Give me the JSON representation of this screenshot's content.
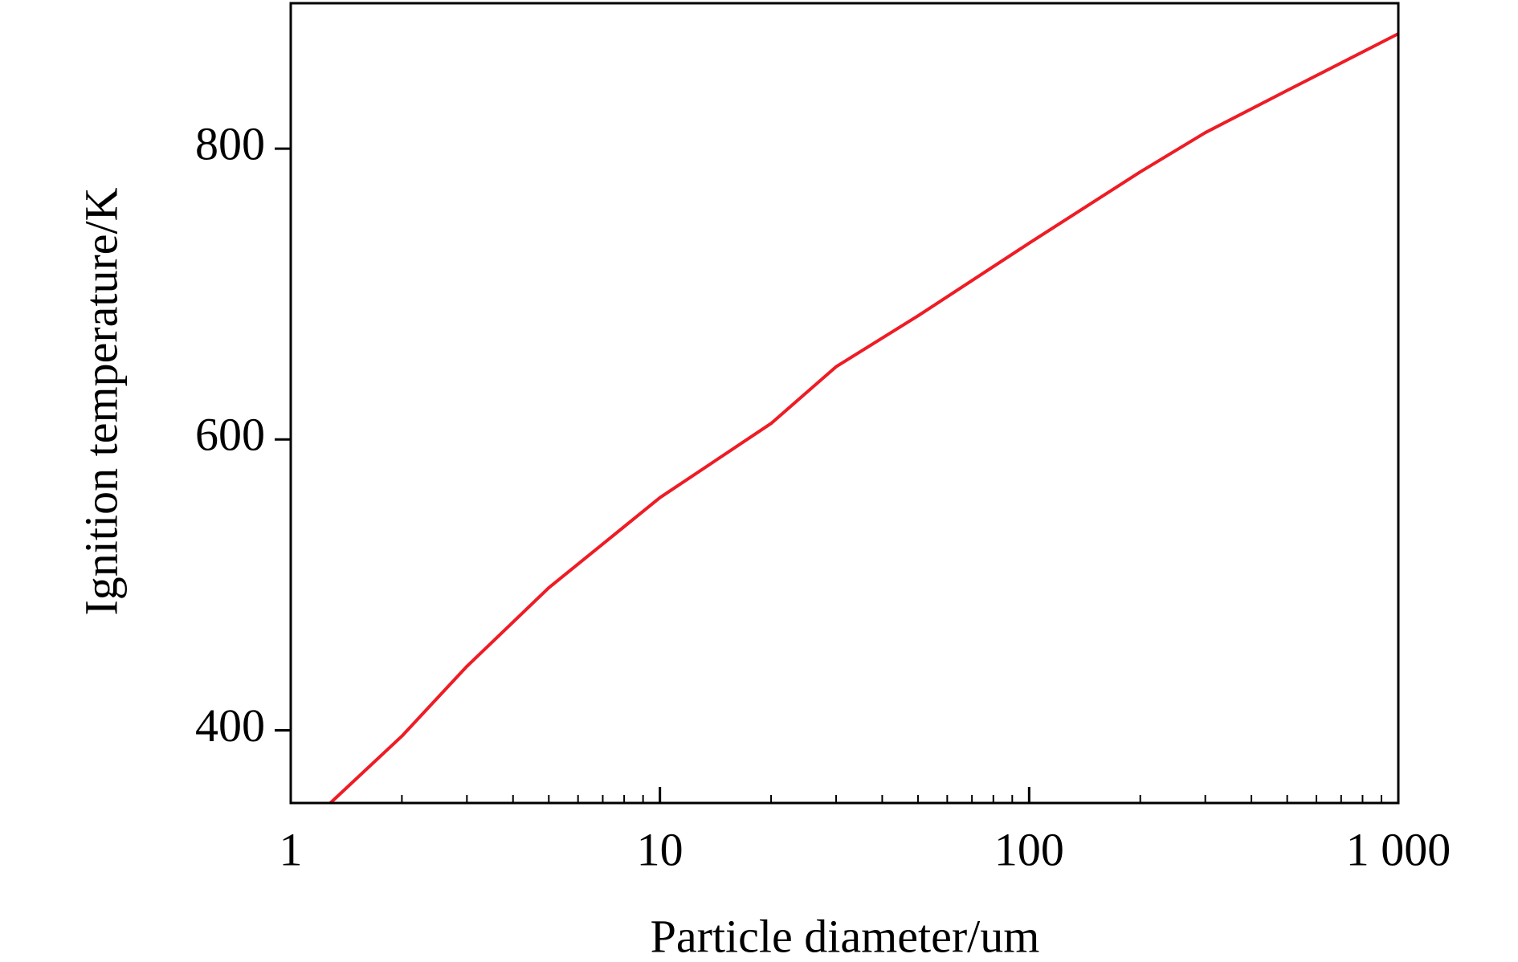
{
  "chart_data": {
    "type": "line",
    "x_label": "Particle diameter/um",
    "y_label": "Ignition temperature/K",
    "x_scale": "log",
    "xlim": [
      1,
      1000
    ],
    "ylim": [
      350,
      900
    ],
    "xticks": [
      1,
      10,
      100,
      {
        "value": 1000,
        "label": "1 000"
      }
    ],
    "xminorticks": [
      2,
      3,
      4,
      5,
      6,
      7,
      8,
      9,
      20,
      30,
      40,
      50,
      60,
      70,
      80,
      90,
      200,
      300,
      400,
      500,
      600,
      700,
      800,
      900
    ],
    "yticks": [
      400,
      600,
      800
    ],
    "grid": false,
    "series": [
      {
        "color": "#ee1c25",
        "x": [
          1.28,
          2,
          3,
          5,
          10,
          20,
          30,
          50,
          100,
          200,
          300,
          500,
          1000
        ],
        "values": [
          350,
          396,
          444,
          498,
          560,
          611,
          650,
          685,
          735,
          784,
          811,
          840,
          879
        ]
      }
    ]
  }
}
